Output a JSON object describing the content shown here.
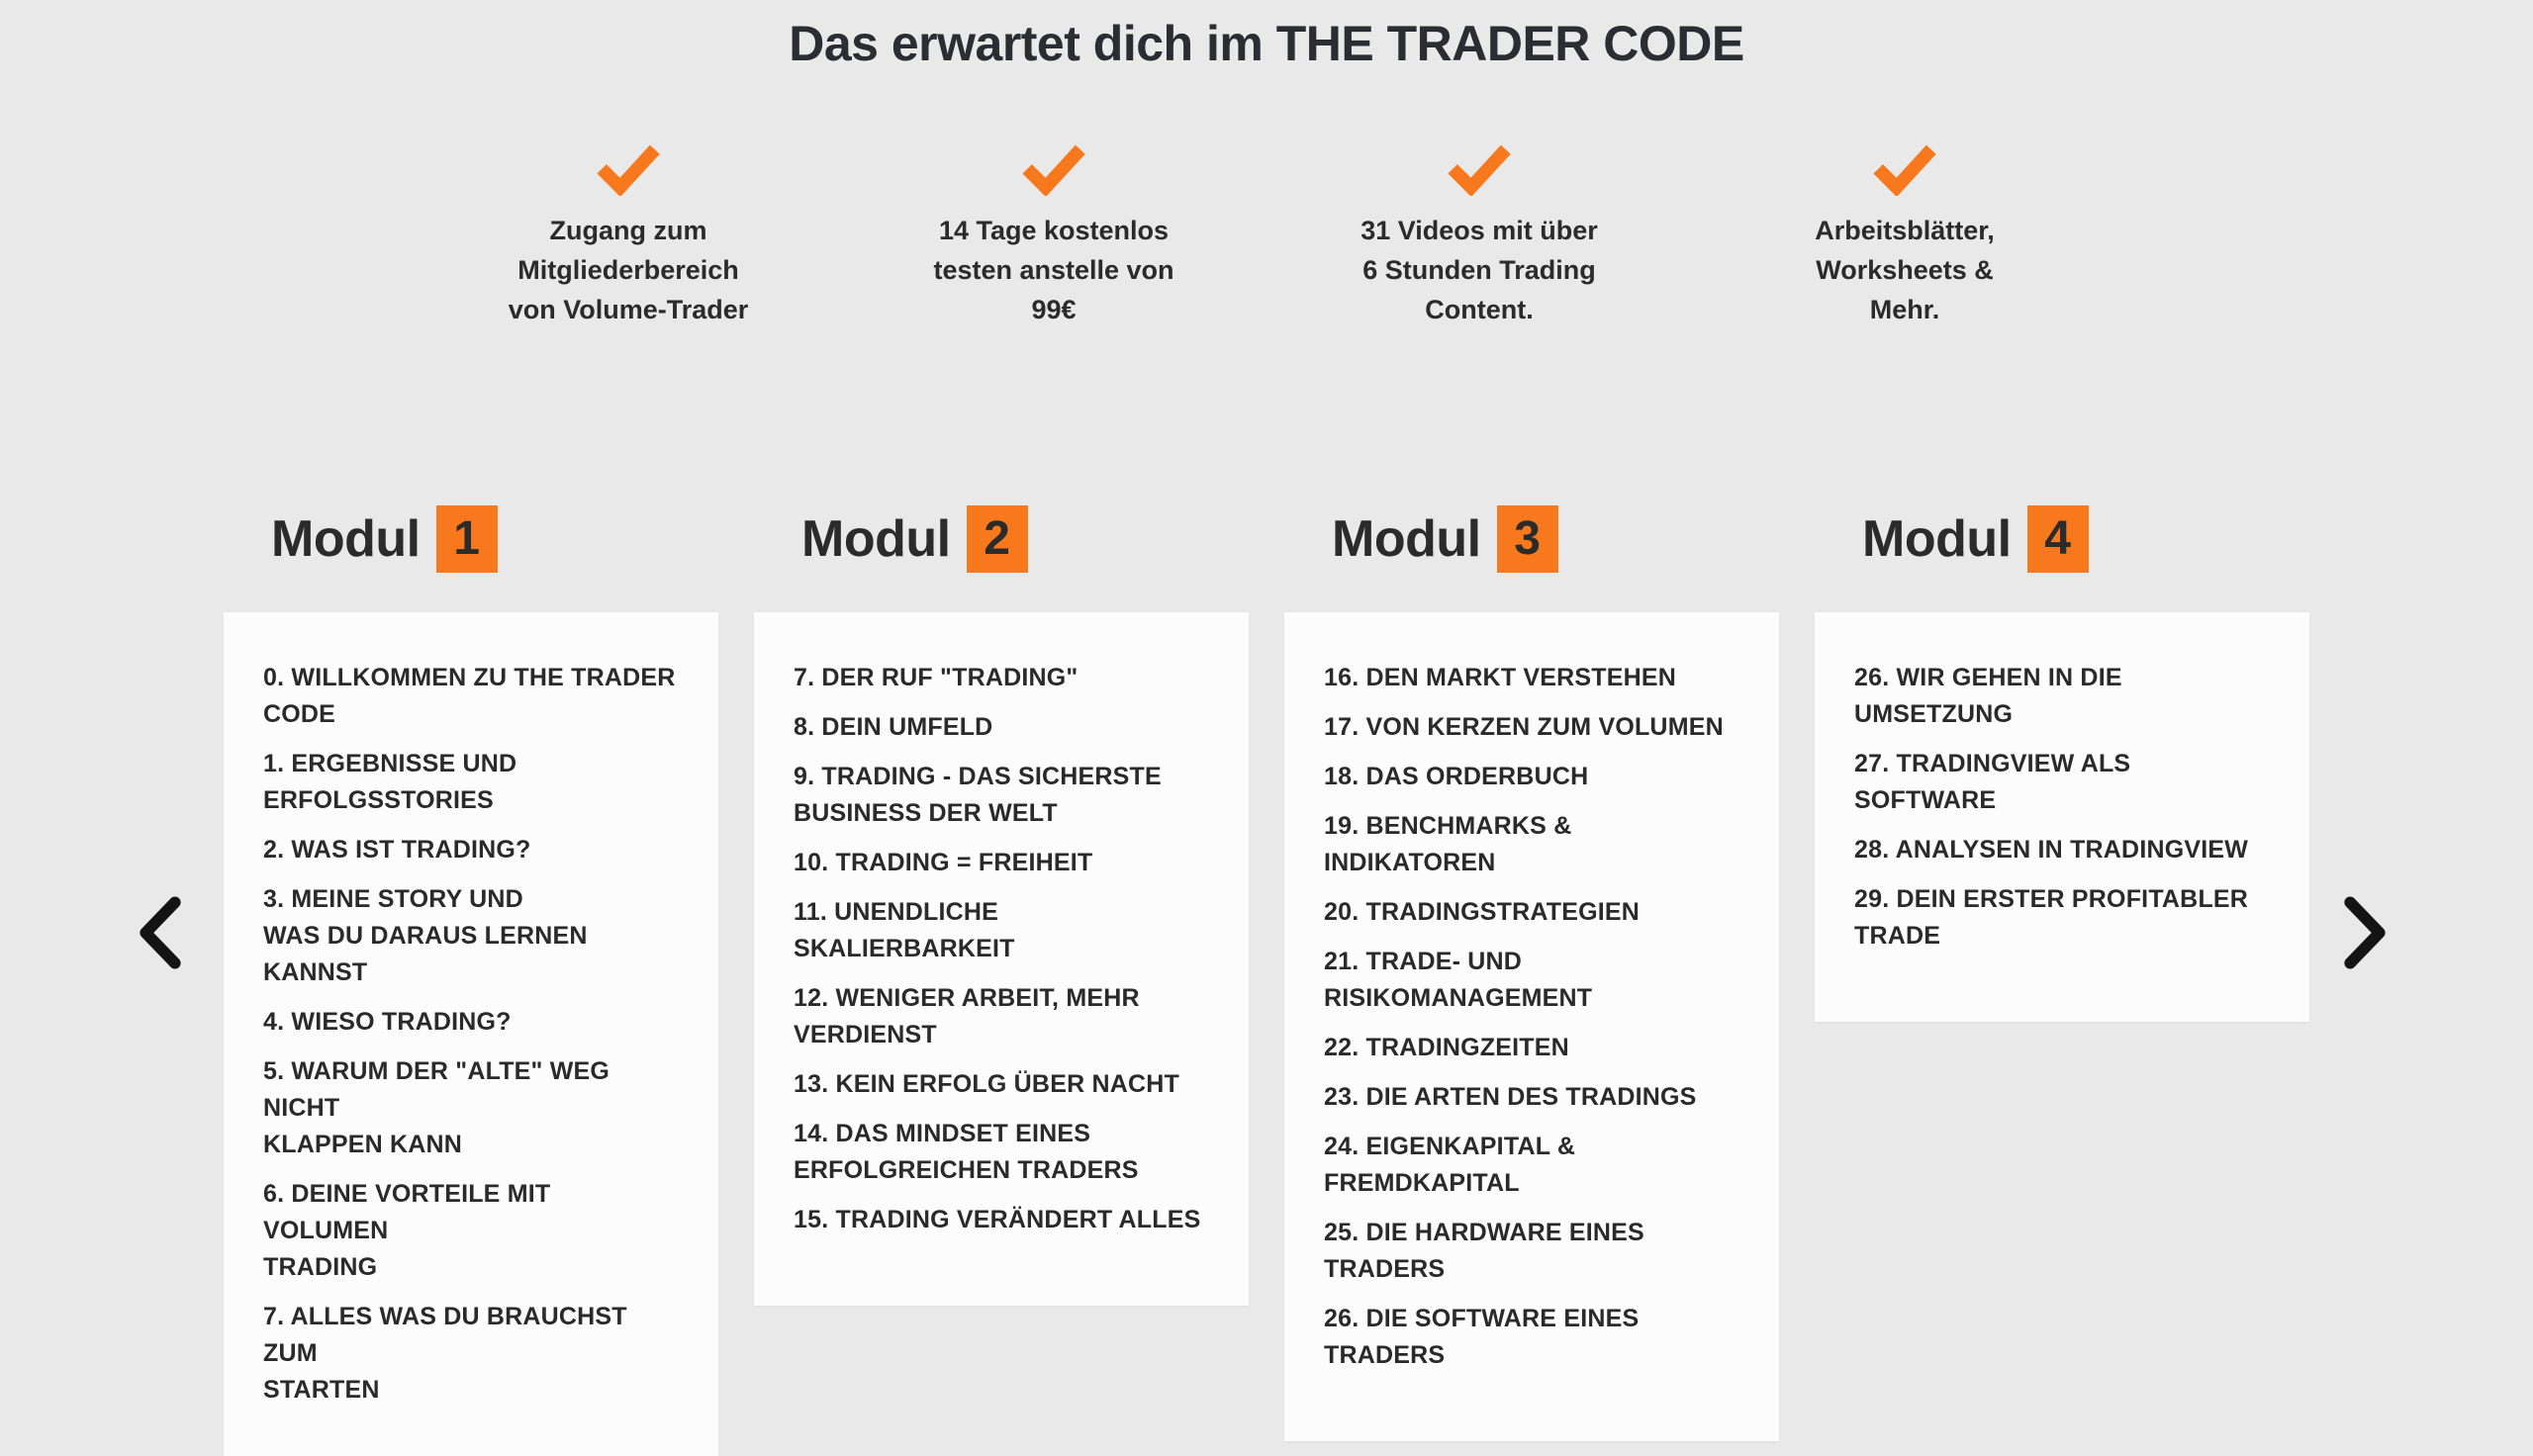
{
  "title": "Das erwartet dich im THE TRADER CODE",
  "benefits": [
    {
      "icon": "check-icon",
      "lines": [
        "Zugang zum",
        "Mitgliederbereich",
        "von Volume-Trader"
      ]
    },
    {
      "icon": "check-icon",
      "lines": [
        "14 Tage kostenlos",
        "testen anstelle von",
        "99€"
      ]
    },
    {
      "icon": "check-icon",
      "lines": [
        "31 Videos mit über",
        "6 Stunden Trading",
        "Content."
      ]
    },
    {
      "icon": "check-icon",
      "lines": [
        "Arbeitsblätter,",
        "Worksheets &",
        "Mehr."
      ]
    }
  ],
  "modules": [
    {
      "label": "Modul",
      "number": "1",
      "lessons": [
        "0. WILLKOMMEN ZU THE TRADER\nCODE",
        "1. ERGEBNISSE UND\nERFOLGSSTORIES",
        "2. WAS IST TRADING?",
        "3. MEINE STORY UND\nWAS DU DARAUS LERNEN KANNST",
        "4. WIESO TRADING?",
        "5. WARUM DER \"ALTE\" WEG NICHT\nKLAPPEN KANN",
        "6. DEINE VORTEILE MIT VOLUMEN\nTRADING",
        "7. ALLES WAS DU BRAUCHST ZUM\nSTARTEN"
      ]
    },
    {
      "label": "Modul",
      "number": "2",
      "lessons": [
        "7. DER RUF \"TRADING\"",
        "8. DEIN UMFELD",
        "9. TRADING - DAS SICHERSTE\nBUSINESS DER WELT",
        "10. TRADING = FREIHEIT",
        "11. UNENDLICHE SKALIERBARKEIT",
        "12. WENIGER ARBEIT, MEHR\nVERDIENST",
        "13. KEIN ERFOLG ÜBER NACHT",
        "14. DAS MINDSET EINES\nERFOLGREICHEN TRADERS",
        "15. TRADING VERÄNDERT ALLES"
      ]
    },
    {
      "label": "Modul",
      "number": "3",
      "lessons": [
        "16. DEN MARKT VERSTEHEN",
        "17. VON KERZEN ZUM VOLUMEN",
        "18. DAS ORDERBUCH",
        "19. BENCHMARKS & INDIKATOREN",
        "20. TRADINGSTRATEGIEN",
        "21. TRADE- UND\nRISIKOMANAGEMENT",
        "22. TRADINGZEITEN",
        "23. DIE ARTEN DES TRADINGS",
        "24. EIGENKAPITAL &\nFREMDKAPITAL",
        "25. DIE HARDWARE EINES\nTRADERS",
        "26. DIE SOFTWARE EINES\nTRADERS"
      ]
    },
    {
      "label": "Modul",
      "number": "4",
      "lessons": [
        "26. WIR GEHEN IN DIE\nUMSETZUNG",
        "27. TRADINGVIEW ALS SOFTWARE",
        "28. ANALYSEN IN TRADINGVIEW",
        "29. DEIN ERSTER PROFITABLER\nTRADE"
      ]
    }
  ],
  "nav": {
    "prev_icon": "chevron-left-icon",
    "next_icon": "chevron-right-icon"
  },
  "colors": {
    "accent": "#f8791d",
    "background": "#e9e9e9",
    "card": "#fcfcfc",
    "text": "#2b2b2b",
    "arrow": "#141414"
  }
}
